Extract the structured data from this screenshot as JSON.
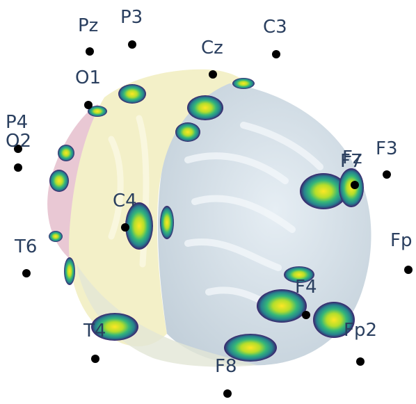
{
  "electrodes": [
    {
      "label": "Pz"
    },
    {
      "label": "P3"
    },
    {
      "label": "C3"
    },
    {
      "label": "Cz"
    },
    {
      "label": "O1"
    },
    {
      "label": "P4"
    },
    {
      "label": "O2"
    },
    {
      "label": "F3"
    },
    {
      "label": "Fz"
    },
    {
      "label": "F7"
    },
    {
      "label": "C4"
    },
    {
      "label": "T6"
    },
    {
      "label": "Fp"
    },
    {
      "label": "F4"
    },
    {
      "label": "T4"
    },
    {
      "label": "Fp2"
    },
    {
      "label": "F8"
    }
  ],
  "colors": {
    "dot": "#000000",
    "label": "#2a3f5f",
    "cortex_frontal": "#dbe6ee",
    "cortex_parietal": "#f4f0c8",
    "cortex_occipital": "#e9c8d4",
    "activation_low": "#35256b",
    "activation_mid": "#21918c",
    "activation_high": "#fde725"
  }
}
